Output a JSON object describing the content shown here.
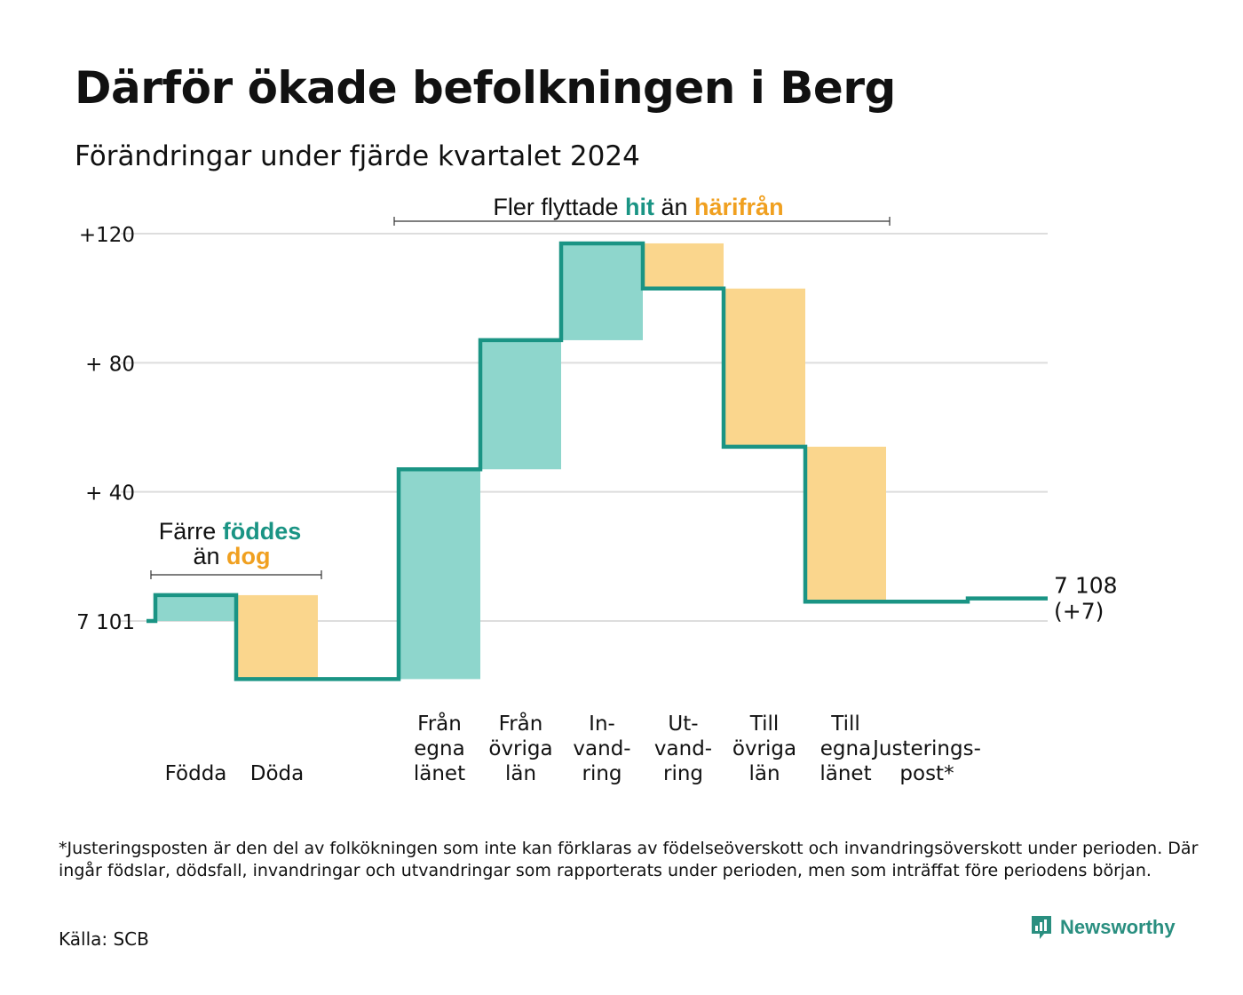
{
  "title": "Därför ökade befolkningen i Berg",
  "subtitle": "Förändringar under fjärde kvartalet 2024",
  "chart_data": {
    "type": "waterfall",
    "baseline": 7101,
    "ylim": [
      -21,
      123
    ],
    "y_ticks": [
      {
        "value": 120,
        "label": "+120"
      },
      {
        "value": 80,
        "label": "+ 80"
      },
      {
        "value": 40,
        "label": "+ 40"
      },
      {
        "value": 0,
        "label": "7 101"
      }
    ],
    "steps": [
      {
        "lines": [
          "Födda"
        ],
        "delta": 8,
        "kind": "gain"
      },
      {
        "lines": [
          "Döda"
        ],
        "delta": -26,
        "kind": "loss"
      },
      {
        "lines": [
          "Från",
          "egna",
          "länet"
        ],
        "delta": 65,
        "kind": "gain"
      },
      {
        "lines": [
          "Från",
          "övriga",
          "län"
        ],
        "delta": 40,
        "kind": "gain"
      },
      {
        "lines": [
          "In-",
          "vand-",
          "ring"
        ],
        "delta": 30,
        "kind": "gain"
      },
      {
        "lines": [
          "Ut-",
          "vand-",
          "ring"
        ],
        "delta": -14,
        "kind": "loss"
      },
      {
        "lines": [
          "Till",
          "övriga",
          "län"
        ],
        "delta": -49,
        "kind": "loss"
      },
      {
        "lines": [
          "Till",
          "egna",
          "länet"
        ],
        "delta": -48,
        "kind": "loss"
      },
      {
        "lines": [
          "Justerings-",
          "post*"
        ],
        "delta": 1,
        "kind": "adjustment"
      }
    ],
    "end_label": {
      "value": "7 108",
      "change": "(+7)"
    },
    "annotations": {
      "births": {
        "line1_prefix": "Färre ",
        "line1_highlight": "föddes",
        "line2_prefix": "än ",
        "line2_highlight": "dog"
      },
      "moves": {
        "prefix": "Fler flyttade ",
        "highlight1": "hit",
        "middle": " än ",
        "highlight2": "härifrån"
      }
    },
    "colors": {
      "gain_fill": "#8ed6cc",
      "loss_fill": "#fad68d",
      "line": "#1a9484",
      "gain_text": "#1a9484",
      "loss_text": "#f0a020",
      "grid": "#dddddd"
    }
  },
  "footnote": "*Justeringsposten är den del av folkökningen som inte kan förklaras av födelseöverskott och invandringsöverskott under perioden. Där ingår födslar, dödsfall, invandringar och utvandringar som rapporterats under perioden, men som inträffat före periodens början.",
  "source": "Källa: SCB",
  "brand": "Newsworthy"
}
